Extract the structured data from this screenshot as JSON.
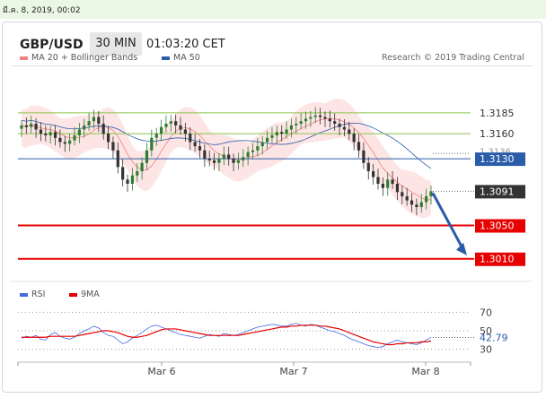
{
  "timestamp": "มี.ค. 8, 2019, 00:02",
  "header": {
    "pair": "GBP/USD",
    "timeframe": "30 MIN",
    "time": "01:03:20 CET"
  },
  "legend": {
    "bollinger": "MA 20 + Bollinger Bands",
    "ma50": "MA 50",
    "credit": "Research © 2019 Trading Central"
  },
  "rsi_legend": {
    "rsi": "RSI",
    "ma9": "9MA"
  },
  "colors": {
    "bollinger": "#f08080",
    "ma50": "#2a5caa",
    "support": "#e60000",
    "level_green": "#8bc34a",
    "current": "#333333",
    "arrow": "#2a5caa"
  },
  "chart_data": [
    {
      "type": "candlestick",
      "title": "GBP/USD",
      "ylim": [
        1.2985,
        1.3215
      ],
      "levels": [
        {
          "label": "1.3185",
          "value": 1.3185,
          "style": "green"
        },
        {
          "label": "1.3160",
          "value": 1.316,
          "style": "green"
        },
        {
          "label": "1.3136",
          "value": 1.3136,
          "style": "faint"
        },
        {
          "label": "1.3130",
          "value": 1.313,
          "style": "blue"
        },
        {
          "label": "1.3091",
          "value": 1.3091,
          "style": "current"
        },
        {
          "label": "1.3050",
          "value": 1.305,
          "style": "support"
        },
        {
          "label": "1.3010",
          "value": 1.301,
          "style": "support"
        }
      ],
      "x_ticks": [
        "Mar 6",
        "Mar 7",
        "Mar 8"
      ],
      "close_series": [
        1.317,
        1.3168,
        1.3172,
        1.3165,
        1.316,
        1.3158,
        1.3162,
        1.3155,
        1.315,
        1.3148,
        1.3152,
        1.3158,
        1.3165,
        1.317,
        1.3175,
        1.318,
        1.3172,
        1.316,
        1.315,
        1.314,
        1.312,
        1.3105,
        1.31,
        1.311,
        1.3115,
        1.3125,
        1.314,
        1.3155,
        1.316,
        1.3168,
        1.3172,
        1.3175,
        1.317,
        1.3165,
        1.316,
        1.315,
        1.3145,
        1.314,
        1.313,
        1.3128,
        1.3125,
        1.313,
        1.3135,
        1.313,
        1.3125,
        1.3128,
        1.3132,
        1.3138,
        1.314,
        1.3145,
        1.315,
        1.3155,
        1.3158,
        1.3162,
        1.316,
        1.3165,
        1.317,
        1.3172,
        1.3175,
        1.3178,
        1.318,
        1.3182,
        1.318,
        1.3178,
        1.3175,
        1.3172,
        1.3168,
        1.3165,
        1.316,
        1.315,
        1.314,
        1.3125,
        1.3115,
        1.3108,
        1.31,
        1.3095,
        1.3105,
        1.31,
        1.309,
        1.3085,
        1.308,
        1.3075,
        1.3072,
        1.3078,
        1.3085,
        1.3091
      ],
      "forecast_target": 1.301
    },
    {
      "type": "line",
      "title": "RSI",
      "ylim": [
        20,
        80
      ],
      "y_ticks": [
        30,
        50,
        70
      ],
      "current_value": "42.79",
      "series": [
        {
          "name": "RSI",
          "values": [
            42,
            44,
            43,
            45,
            41,
            40,
            46,
            48,
            44,
            42,
            41,
            43,
            47,
            50,
            52,
            55,
            53,
            48,
            45,
            44,
            40,
            36,
            38,
            42,
            45,
            48,
            52,
            55,
            56,
            54,
            52,
            50,
            48,
            46,
            45,
            44,
            43,
            42,
            44,
            46,
            45,
            44,
            47,
            46,
            45,
            46,
            48,
            50,
            52,
            54,
            55,
            56,
            57,
            56,
            55,
            55,
            57,
            58,
            56,
            55,
            57,
            56,
            54,
            52,
            50,
            49,
            47,
            45,
            42,
            40,
            38,
            36,
            34,
            33,
            32,
            33,
            36,
            38,
            40,
            38,
            37,
            36,
            35,
            37,
            40,
            42.79
          ]
        },
        {
          "name": "9MA",
          "values": [
            43,
            43,
            43,
            43,
            43,
            43,
            44,
            44,
            44,
            44,
            44,
            44,
            45,
            46,
            47,
            48,
            49,
            50,
            50,
            49,
            48,
            46,
            44,
            43,
            43,
            44,
            45,
            47,
            49,
            51,
            52,
            52,
            52,
            51,
            50,
            49,
            48,
            47,
            46,
            45,
            45,
            45,
            45,
            45,
            45,
            45,
            46,
            47,
            48,
            49,
            50,
            51,
            52,
            53,
            54,
            54,
            55,
            55,
            56,
            56,
            56,
            56,
            55,
            55,
            54,
            53,
            52,
            50,
            48,
            46,
            44,
            42,
            40,
            38,
            37,
            36,
            35,
            35,
            36,
            36,
            37,
            37,
            37,
            38,
            38,
            39
          ]
        }
      ]
    }
  ]
}
